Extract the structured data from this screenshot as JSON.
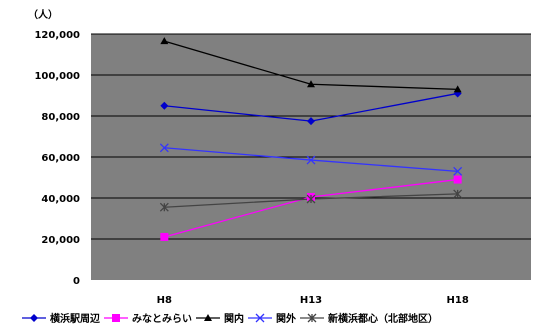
{
  "chart_data": {
    "type": "line",
    "title": "",
    "xlabel": "",
    "ylabel": "（人）",
    "categories": [
      "H8",
      "H13",
      "H18"
    ],
    "ylim": [
      0,
      120000
    ],
    "ytick_labels": [
      "0",
      "20,000",
      "40,000",
      "60,000",
      "80,000",
      "100,000",
      "120,000"
    ],
    "grid": true,
    "legend_position": "bottom",
    "series": [
      {
        "name": "横浜駅周辺",
        "values": [
          85000,
          77500,
          91000
        ],
        "color": "#0000cc",
        "marker": "diamond"
      },
      {
        "name": "みなとみらい",
        "values": [
          21000,
          40500,
          49000
        ],
        "color": "#ff00ff",
        "marker": "square"
      },
      {
        "name": "関内",
        "values": [
          116500,
          95500,
          93000
        ],
        "color": "#000000",
        "marker": "triangle"
      },
      {
        "name": "関外",
        "values": [
          64500,
          58500,
          53000
        ],
        "color": "#3333ff",
        "marker": "x"
      },
      {
        "name": "新横浜都心（北部地区）",
        "values": [
          35500,
          39500,
          42000
        ],
        "color": "#444444",
        "marker": "star"
      }
    ],
    "plot_bg": "#808080"
  }
}
